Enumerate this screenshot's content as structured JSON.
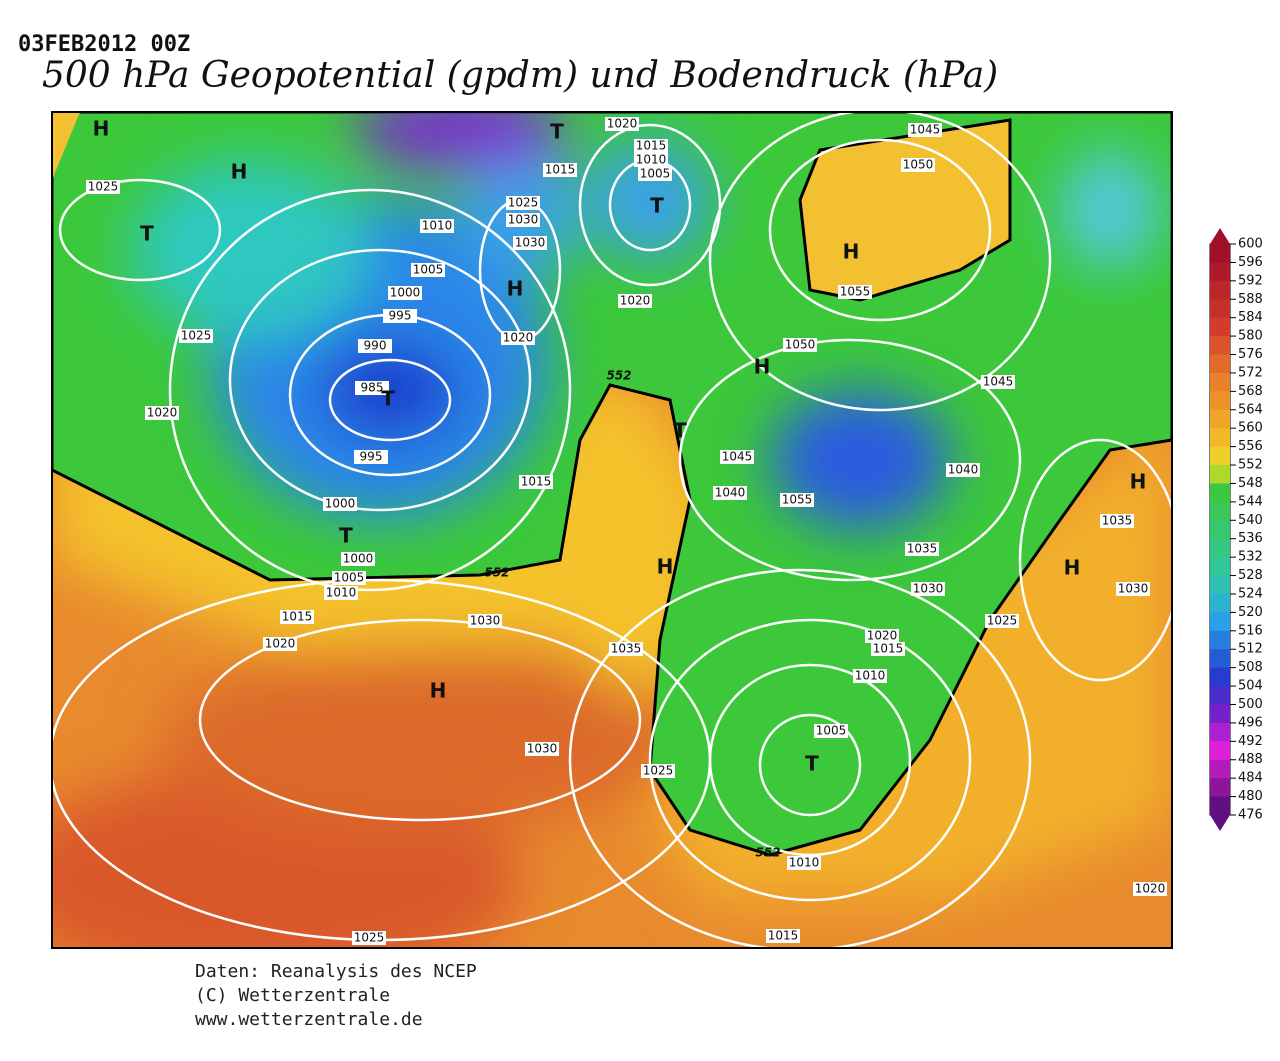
{
  "header": {
    "date": "03FEB2012 00Z",
    "title": "500 hPa Geopotential (gpdm) und Bodendruck (hPa)"
  },
  "map": {
    "pressure_labels": [
      "1020",
      "1015",
      "1015",
      "1010",
      "1005",
      "1045",
      "1050",
      "1025",
      "1025",
      "1030",
      "1030",
      "1010",
      "1005",
      "1000",
      "995",
      "990",
      "985",
      "995",
      "1000",
      "1000",
      "1005",
      "1010",
      "1025",
      "1020",
      "1020",
      "1020",
      "1055",
      "1050",
      "1045",
      "1045",
      "1040",
      "1055",
      "1040",
      "1015",
      "1035",
      "1035",
      "1030",
      "1030",
      "1025",
      "1020",
      "1015",
      "1010",
      "1005",
      "1015",
      "1020",
      "1030",
      "1035",
      "1030",
      "1025",
      "1010",
      "1015",
      "1025",
      "1020"
    ],
    "contour_labels": [
      "552",
      "552",
      "552"
    ],
    "centers": [
      "H",
      "H",
      "T",
      "T",
      "T",
      "H",
      "H",
      "H",
      "T",
      "T",
      "T",
      "H",
      "H",
      "H",
      "H",
      "T"
    ]
  },
  "colorbar": {
    "ticks": [
      600,
      596,
      592,
      588,
      584,
      580,
      576,
      572,
      568,
      564,
      560,
      556,
      552,
      548,
      544,
      540,
      536,
      532,
      528,
      524,
      520,
      516,
      512,
      508,
      504,
      500,
      496,
      492,
      488,
      484,
      480,
      476
    ]
  },
  "footer": {
    "lines": [
      "Daten: Reanalysis des NCEP",
      "(C) Wetterzentrale",
      "www.wetterzentrale.de"
    ]
  }
}
